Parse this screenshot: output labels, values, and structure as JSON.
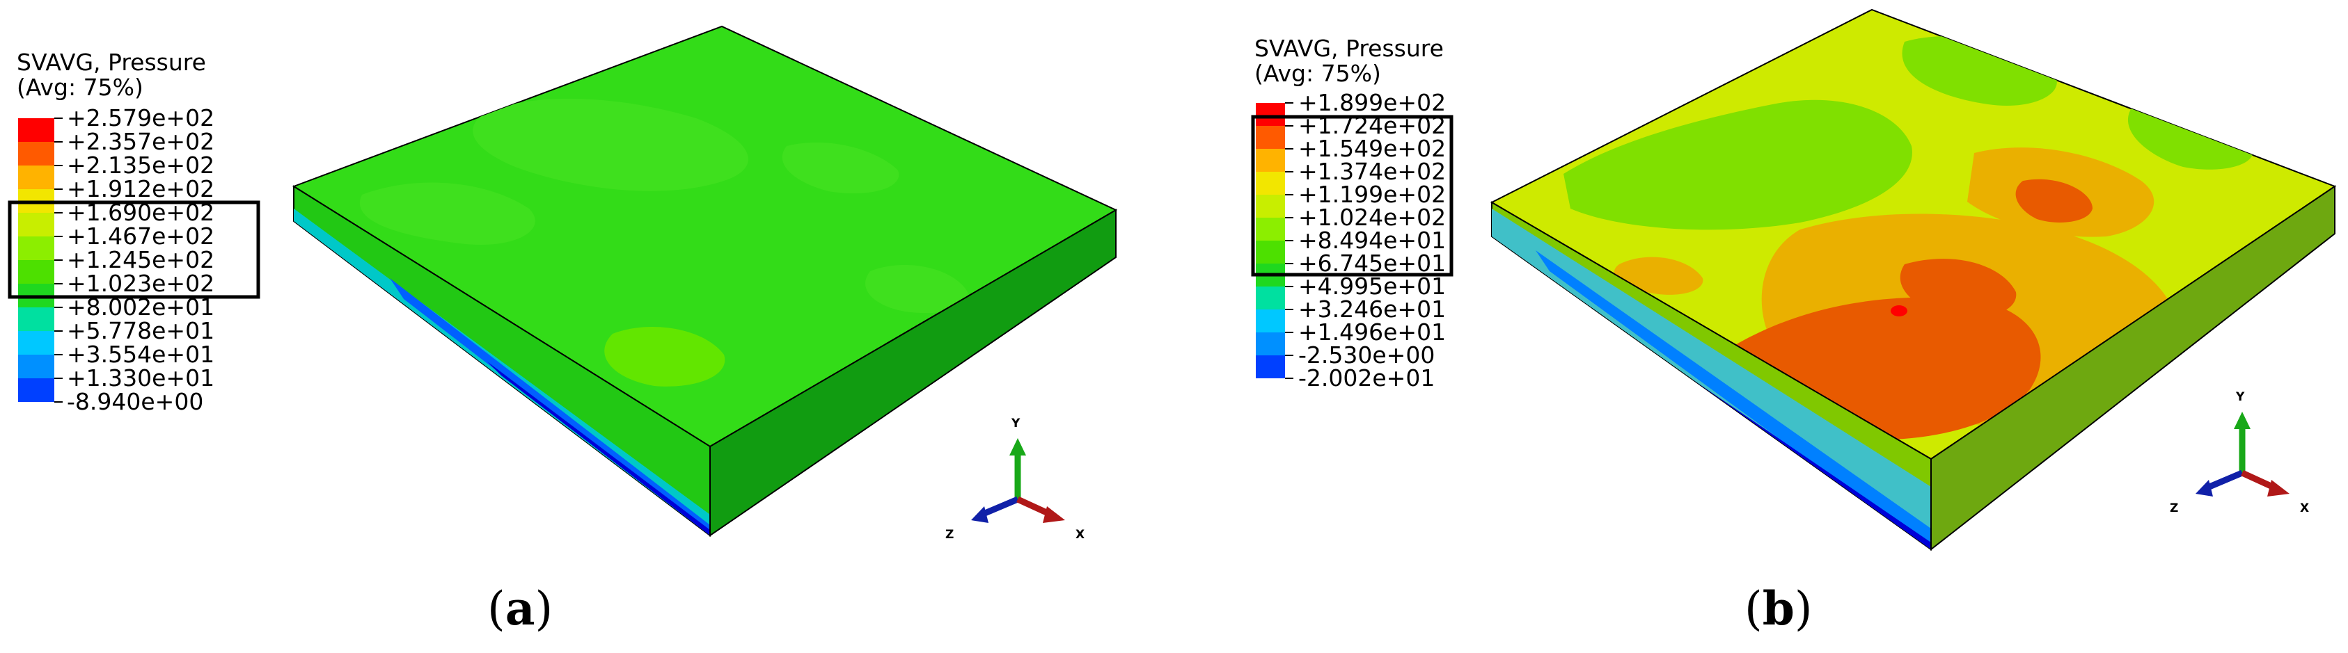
{
  "panels": [
    {
      "id": "a",
      "label_letter": "a",
      "legend": {
        "title_line1": "SVAVG, Pressure",
        "title_line2": "(Avg: 75%)",
        "values": [
          "+2.579e+02",
          "+2.357e+02",
          "+2.135e+02",
          "+1.912e+02",
          "+1.690e+02",
          "+1.467e+02",
          "+1.245e+02",
          "+1.023e+02",
          "+8.002e+01",
          "+5.778e+01",
          "+3.554e+01",
          "+1.330e+01",
          "-8.940e+00"
        ],
        "highlighted_range": [
          "+1.690e+02",
          "+1.023e+02"
        ]
      },
      "triad": {
        "y": "Y",
        "z": "Z",
        "x": "X"
      }
    },
    {
      "id": "b",
      "label_letter": "b",
      "legend": {
        "title_line1": "SVAVG, Pressure",
        "title_line2": "(Avg: 75%)",
        "values": [
          "+1.899e+02",
          "+1.724e+02",
          "+1.549e+02",
          "+1.374e+02",
          "+1.199e+02",
          "+1.024e+02",
          "+8.494e+01",
          "+6.745e+01",
          "+4.995e+01",
          "+3.246e+01",
          "+1.496e+01",
          "-2.530e+00",
          "-2.002e+01"
        ],
        "highlighted_range": [
          "+1.724e+02",
          "+6.745e+01"
        ]
      },
      "triad": {
        "y": "Y",
        "z": "Z",
        "x": "X"
      }
    }
  ],
  "colormap": [
    "#ff0000",
    "#ff5a00",
    "#ffb300",
    "#f2e600",
    "#c8ee00",
    "#8cee00",
    "#4de000",
    "#1fd81f",
    "#00e0a0",
    "#00c8ff",
    "#0090ff",
    "#0040ff",
    "#0000e6"
  ]
}
